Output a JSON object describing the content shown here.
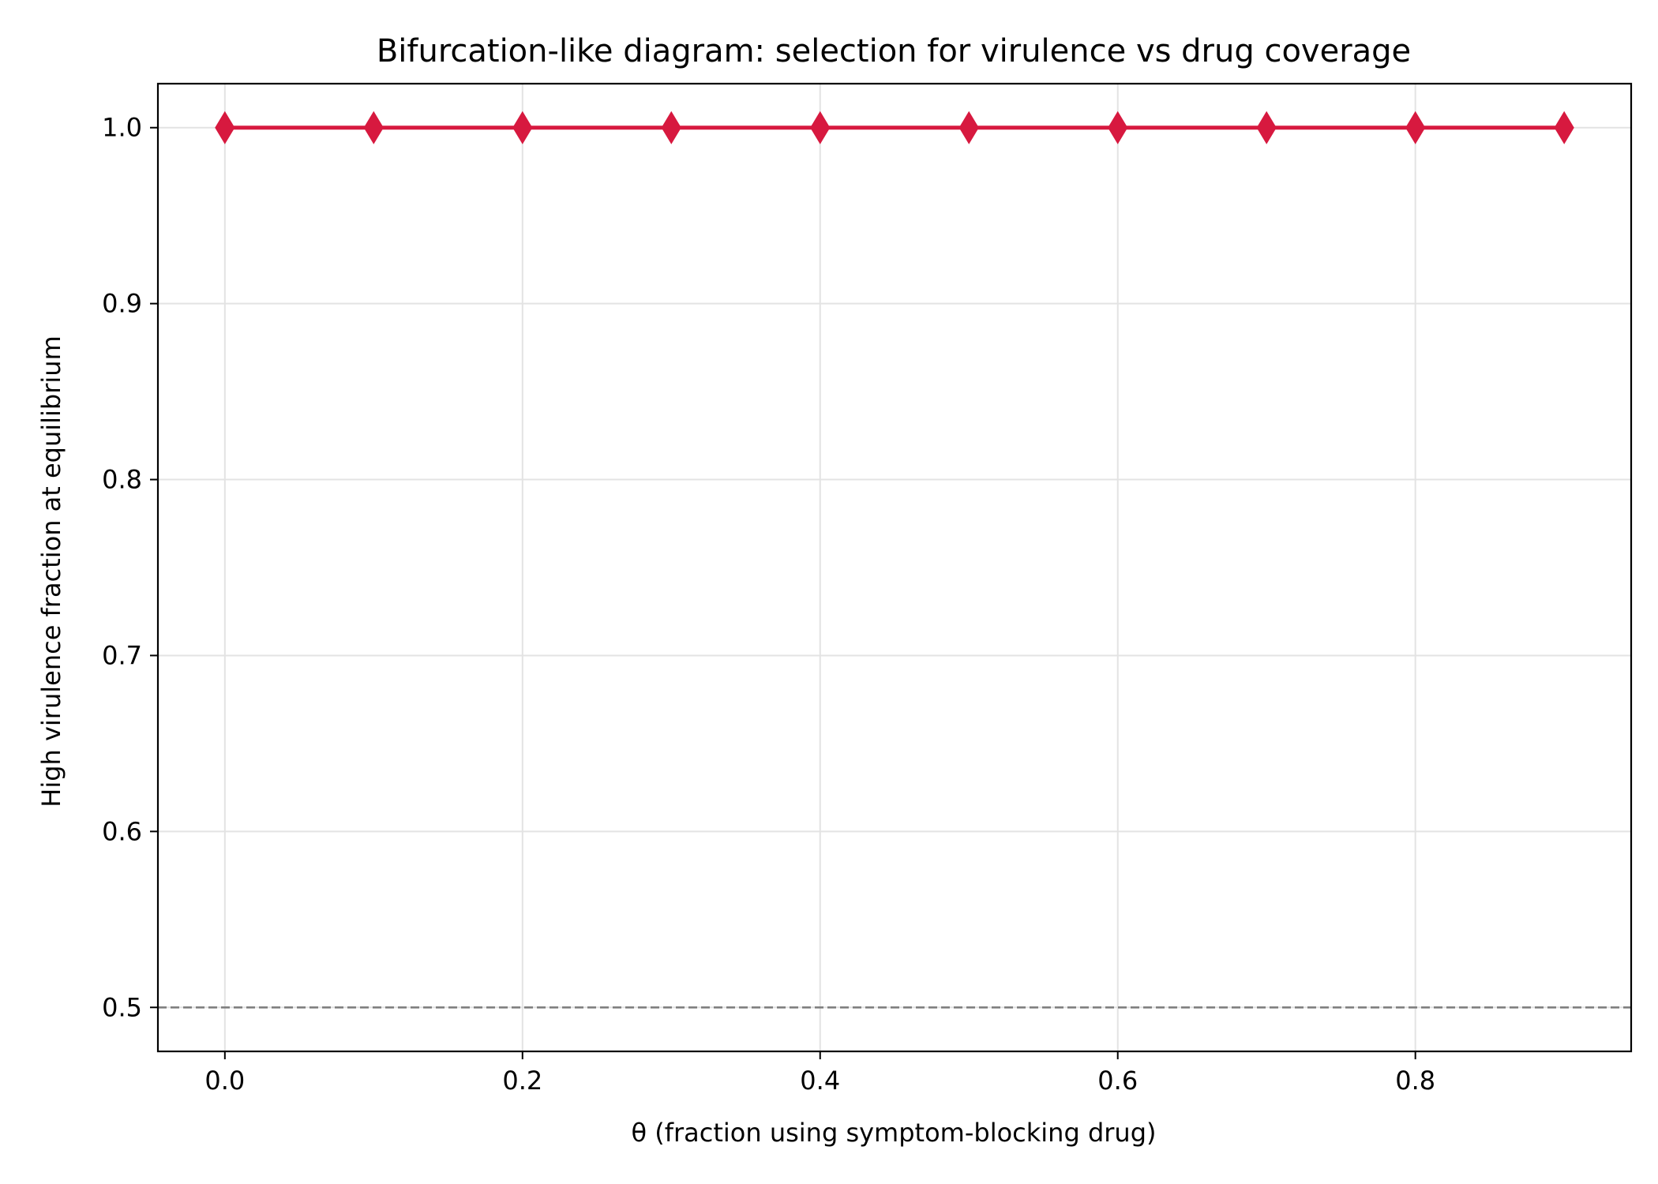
{
  "chart_data": {
    "type": "line",
    "title": "Bifurcation-like diagram: selection for virulence vs drug coverage",
    "xlabel": "θ (fraction using symptom-blocking drug)",
    "ylabel": "High virulence fraction at equilibrium",
    "xlim": [
      -0.045,
      0.945
    ],
    "ylim": [
      0.475,
      1.025
    ],
    "xticks": [
      0.0,
      0.2,
      0.4,
      0.6,
      0.8
    ],
    "xtick_labels": [
      "0.0",
      "0.2",
      "0.4",
      "0.6",
      "0.8"
    ],
    "yticks": [
      0.5,
      0.6,
      0.7,
      0.8,
      0.9,
      1.0
    ],
    "ytick_labels": [
      "0.5",
      "0.6",
      "0.7",
      "0.8",
      "0.9",
      "1.0"
    ],
    "grid": true,
    "series": [
      {
        "x": [
          0.0,
          0.1,
          0.2,
          0.3,
          0.4,
          0.5,
          0.6,
          0.7,
          0.8,
          0.9
        ],
        "values": [
          1.0,
          1.0,
          1.0,
          1.0,
          1.0,
          1.0,
          1.0,
          1.0,
          1.0,
          1.0
        ],
        "color": "#d7193f",
        "marker": "diamond"
      }
    ],
    "reference_lines": [
      {
        "y": 0.5,
        "style": "dashed",
        "color": "#808080"
      }
    ]
  }
}
